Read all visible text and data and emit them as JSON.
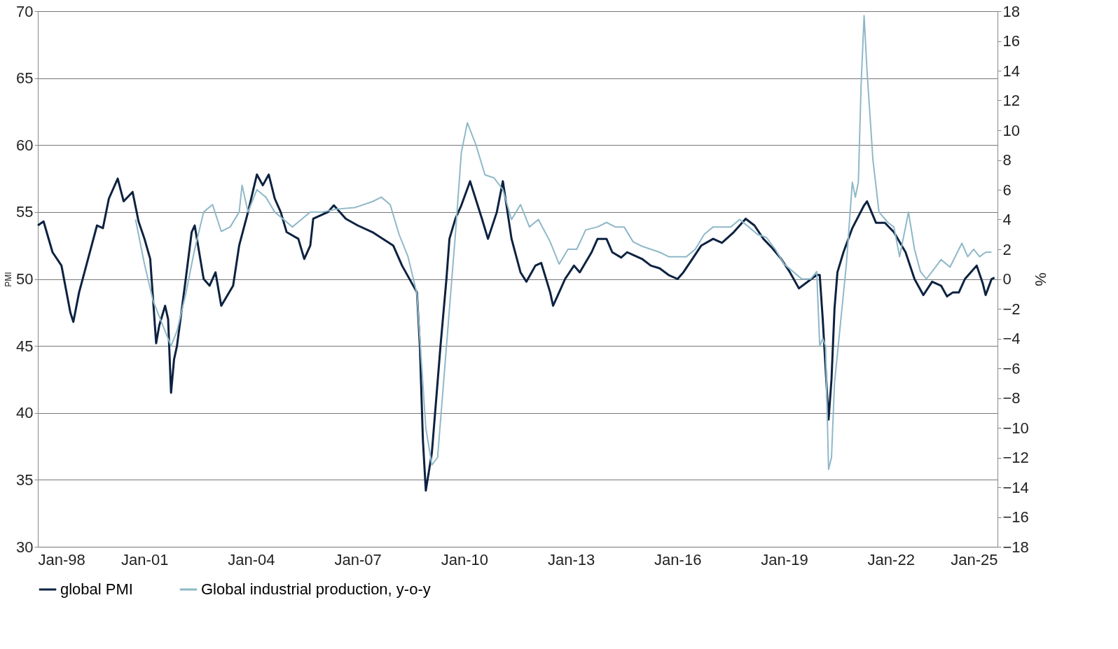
{
  "chart_data": {
    "type": "line",
    "ylabel": "PMI",
    "y2label": "%",
    "xlim": [
      "1998-01",
      "2025-01"
    ],
    "xticks": [
      {
        "value": "1998-01",
        "label": "Jan-98"
      },
      {
        "value": "2001-01",
        "label": "Jan-01"
      },
      {
        "value": "2004-01",
        "label": "Jan-04"
      },
      {
        "value": "2007-01",
        "label": "Jan-07"
      },
      {
        "value": "2010-01",
        "label": "Jan-10"
      },
      {
        "value": "2013-01",
        "label": "Jan-13"
      },
      {
        "value": "2016-01",
        "label": "Jan-16"
      },
      {
        "value": "2019-01",
        "label": "Jan-19"
      },
      {
        "value": "2022-01",
        "label": "Jan-22"
      },
      {
        "value": "2025-01",
        "label": "Jan-25"
      }
    ],
    "ylim": [
      30,
      70
    ],
    "yticks": [
      30,
      35,
      40,
      45,
      50,
      55,
      60,
      65,
      70
    ],
    "y2lim": [
      -18,
      18
    ],
    "y2ticks": [
      -18,
      -16,
      -14,
      -12,
      -10,
      -8,
      -6,
      -4,
      -2,
      0,
      2,
      4,
      6,
      8,
      10,
      12,
      14,
      16,
      18
    ],
    "grid": "y",
    "legend": "bottom",
    "marker": "none",
    "line_style": "solid",
    "series": [
      {
        "name": "global PMI",
        "color": "#0d2240",
        "x": [
          "1998-01",
          "1998-03",
          "1998-06",
          "1998-09",
          "1998-12",
          "1999-01",
          "1999-03",
          "1999-06",
          "1999-09",
          "1999-11",
          "2000-01",
          "2000-04",
          "2000-06",
          "2000-09",
          "2000-11",
          "2001-01",
          "2001-03",
          "2001-05",
          "2001-06",
          "2001-08",
          "2001-09",
          "2001-10",
          "2001-11",
          "2001-12",
          "2002-03",
          "2002-05",
          "2002-06",
          "2002-09",
          "2002-11",
          "2003-01",
          "2003-03",
          "2003-07",
          "2003-09",
          "2003-12",
          "2004-03",
          "2004-05",
          "2004-07",
          "2004-09",
          "2004-11",
          "2005-01",
          "2005-05",
          "2005-07",
          "2005-09",
          "2005-10",
          "2006-03",
          "2006-05",
          "2006-09",
          "2007-01",
          "2007-06",
          "2008-01",
          "2008-04",
          "2008-09",
          "2008-10",
          "2008-11",
          "2008-12",
          "2009-02",
          "2009-05",
          "2009-07",
          "2009-08",
          "2009-10",
          "2009-12",
          "2010-03",
          "2010-07",
          "2010-09",
          "2010-12",
          "2011-02",
          "2011-05",
          "2011-08",
          "2011-10",
          "2012-01",
          "2012-03",
          "2012-06",
          "2012-07",
          "2012-09",
          "2012-11",
          "2013-02",
          "2013-04",
          "2013-08",
          "2013-10",
          "2014-01",
          "2014-03",
          "2014-06",
          "2014-08",
          "2014-10",
          "2015-01",
          "2015-04",
          "2015-07",
          "2015-10",
          "2016-01",
          "2016-03",
          "2016-06",
          "2016-09",
          "2017-01",
          "2017-04",
          "2017-08",
          "2017-12",
          "2018-03",
          "2018-06",
          "2018-09",
          "2018-12",
          "2019-03",
          "2019-06",
          "2019-09",
          "2019-12",
          "2020-01",
          "2020-02",
          "2020-04",
          "2020-05",
          "2020-06",
          "2020-07",
          "2020-09",
          "2020-12",
          "2021-04",
          "2021-05",
          "2021-08",
          "2021-11",
          "2022-02",
          "2022-06",
          "2022-09",
          "2022-12",
          "2023-03",
          "2023-06",
          "2023-08",
          "2023-10",
          "2023-12",
          "2024-02",
          "2024-04",
          "2024-06",
          "2024-08",
          "2024-09",
          "2024-11",
          "2024-12"
        ],
        "values": [
          54,
          54.3,
          52,
          51,
          47.5,
          46.8,
          49,
          51.5,
          54,
          53.8,
          56,
          57.5,
          55.8,
          56.5,
          54.3,
          53,
          51.5,
          45.2,
          46.5,
          48,
          47,
          41.5,
          44,
          45,
          50,
          53.5,
          54,
          50,
          49.5,
          50.5,
          48,
          49.5,
          52.5,
          55,
          57.8,
          57,
          57.8,
          56,
          55,
          53.5,
          53,
          51.5,
          52.5,
          54.5,
          55,
          55.5,
          54.5,
          54,
          53.5,
          52.5,
          51,
          49,
          45,
          38,
          34.2,
          37,
          45,
          50,
          53,
          54.5,
          55.5,
          57.3,
          54.5,
          53,
          55,
          57.3,
          53,
          50.5,
          49.8,
          51,
          51.2,
          49,
          48,
          49,
          50,
          51,
          50.5,
          52,
          53,
          53,
          52,
          51.6,
          52,
          51.8,
          51.5,
          51,
          50.8,
          50.3,
          50,
          50.5,
          51.5,
          52.5,
          53,
          52.7,
          53.5,
          54.5,
          54,
          53,
          52.3,
          51.5,
          50.5,
          49.3,
          49.8,
          50.3,
          50.3,
          47,
          39.5,
          42.5,
          47.8,
          50.5,
          52,
          53.8,
          55.5,
          55.8,
          54.2,
          54.2,
          53.5,
          52,
          50,
          48.8,
          49.8,
          49.5,
          48.7,
          49,
          49,
          50,
          50.5,
          51,
          49.7,
          48.8,
          50,
          50.1
        ]
      },
      {
        "name": "Global industrial production, y-o-y",
        "color": "#8fb8c8",
        "axis": "y2",
        "x": [
          "2000-10",
          "2001-01",
          "2001-04",
          "2001-07",
          "2001-10",
          "2001-12",
          "2002-03",
          "2002-06",
          "2002-09",
          "2002-12",
          "2003-03",
          "2003-06",
          "2003-09",
          "2003-10",
          "2003-12",
          "2004-03",
          "2004-06",
          "2004-09",
          "2004-12",
          "2005-03",
          "2005-06",
          "2005-09",
          "2006-01",
          "2006-06",
          "2006-12",
          "2007-06",
          "2007-09",
          "2007-12",
          "2008-03",
          "2008-06",
          "2008-09",
          "2008-10",
          "2008-12",
          "2009-02",
          "2009-04",
          "2009-06",
          "2009-08",
          "2009-10",
          "2009-12",
          "2010-02",
          "2010-05",
          "2010-08",
          "2010-11",
          "2011-02",
          "2011-05",
          "2011-08",
          "2011-11",
          "2012-02",
          "2012-06",
          "2012-09",
          "2012-12",
          "2013-03",
          "2013-06",
          "2013-10",
          "2014-01",
          "2014-04",
          "2014-07",
          "2014-10",
          "2015-01",
          "2015-04",
          "2015-07",
          "2015-10",
          "2016-01",
          "2016-04",
          "2016-07",
          "2016-10",
          "2017-01",
          "2017-04",
          "2017-07",
          "2017-10",
          "2018-01",
          "2018-04",
          "2018-07",
          "2018-10",
          "2019-01",
          "2019-04",
          "2019-07",
          "2019-10",
          "2019-12",
          "2020-01",
          "2020-02",
          "2020-03",
          "2020-04",
          "2020-05",
          "2020-06",
          "2020-08",
          "2020-10",
          "2020-12",
          "2021-01",
          "2021-02",
          "2021-03",
          "2021-04",
          "2021-05",
          "2021-07",
          "2021-09",
          "2021-12",
          "2022-02",
          "2022-04",
          "2022-06",
          "2022-07",
          "2022-09",
          "2022-11",
          "2023-01",
          "2023-03",
          "2023-06",
          "2023-09",
          "2023-12",
          "2024-01",
          "2024-03",
          "2024-05",
          "2024-07",
          "2024-09",
          "2024-11"
        ],
        "values": [
          4,
          1,
          -1.5,
          -3,
          -4.5,
          -3.5,
          -1,
          2,
          4.5,
          5,
          3.2,
          3.5,
          4.5,
          6.3,
          4.5,
          6,
          5.5,
          4.5,
          4,
          3.5,
          4,
          4.5,
          4.5,
          4.7,
          4.8,
          5.2,
          5.5,
          5,
          3,
          1.5,
          -1,
          -4,
          -10,
          -12.5,
          -12,
          -7,
          -2,
          3,
          8.5,
          10.5,
          9,
          7,
          6.8,
          6,
          4,
          5,
          3.5,
          4,
          2.5,
          1,
          2,
          2,
          3.3,
          3.5,
          3.8,
          3.5,
          3.5,
          2.5,
          2.2,
          2,
          1.8,
          1.5,
          1.5,
          1.5,
          2,
          3,
          3.5,
          3.5,
          3.5,
          4,
          3.5,
          3,
          2.8,
          2,
          1,
          0.5,
          0,
          0,
          0.5,
          -4.5,
          -4,
          -4.5,
          -12.8,
          -12,
          -7,
          -3,
          1,
          6.5,
          5.5,
          6.5,
          13,
          17.7,
          14,
          8,
          4.5,
          3.8,
          3.5,
          1.5,
          3.5,
          4.5,
          2,
          0.5,
          0,
          0.5,
          1.3,
          0.8,
          2,
          2.4,
          1.5,
          2,
          1.5,
          1.8,
          1.8
        ]
      }
    ]
  }
}
